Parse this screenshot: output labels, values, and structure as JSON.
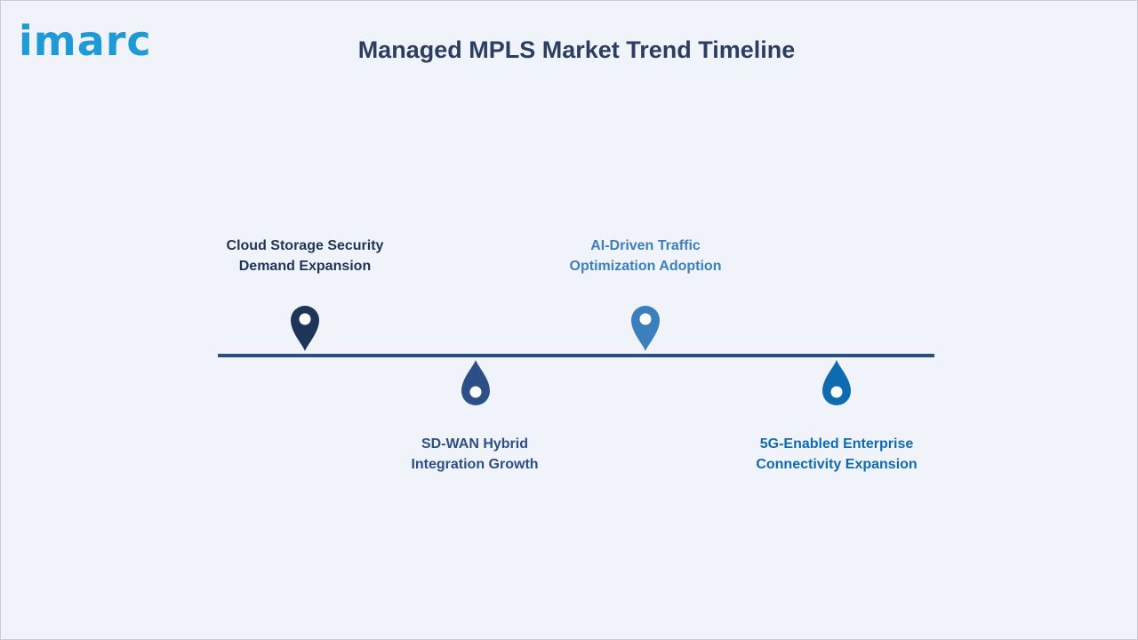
{
  "brand": {
    "logo_text": "imarc"
  },
  "title": "Managed MPLS Market Trend Timeline",
  "milestones": [
    {
      "line1": "Cloud Storage Security",
      "line2": "Demand Expansion",
      "color": "#1e3558"
    },
    {
      "line1": "SD-WAN Hybrid",
      "line2": "Integration Growth",
      "color": "#2c4f88"
    },
    {
      "line1": "AI-Driven Traffic",
      "line2": "Optimization Adoption",
      "color": "#3b7fbd"
    },
    {
      "line1": "5G-Enabled Enterprise",
      "line2": "Connectivity Expansion",
      "color": "#0f6bb0"
    }
  ]
}
